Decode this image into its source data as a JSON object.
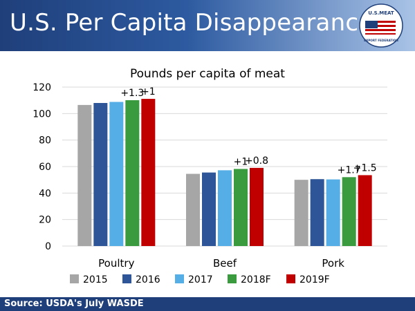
{
  "header": {
    "title": "U.S. Per Capita Disappearance",
    "logo": {
      "icon": "usmef-flag-logo",
      "text_top": "U.S.MEAT",
      "text_bottom": "EXPORT FEDERATION"
    }
  },
  "footer": {
    "source": "Source: USDA's July WASDE"
  },
  "colors": {
    "header_gradient": [
      "#1f3f7a",
      "#a9c3e6"
    ],
    "footer": "#1f3f7a",
    "series": [
      "#a6a6a6",
      "#2e5597",
      "#56aee6",
      "#3a9b3e",
      "#c00000"
    ]
  },
  "chart_data": {
    "type": "bar",
    "title": "Pounds per capita of meat",
    "categories": [
      "Poultry",
      "Beef",
      "Pork"
    ],
    "series": [
      {
        "name": "2015",
        "values": [
          106.5,
          54.5,
          50.0
        ]
      },
      {
        "name": "2016",
        "values": [
          108.0,
          55.5,
          50.5
        ]
      },
      {
        "name": "2017",
        "values": [
          108.8,
          57.2,
          50.3
        ]
      },
      {
        "name": "2018F",
        "values": [
          110.1,
          58.2,
          52.0
        ]
      },
      {
        "name": "2019F",
        "values": [
          111.1,
          59.0,
          53.5
        ]
      }
    ],
    "annotations": [
      {
        "category": "Poultry",
        "series": "2018F",
        "text": "+1.3"
      },
      {
        "category": "Poultry",
        "series": "2019F",
        "text": "+1"
      },
      {
        "category": "Beef",
        "series": "2018F",
        "text": "+1"
      },
      {
        "category": "Beef",
        "series": "2019F",
        "text": "+0.8"
      },
      {
        "category": "Pork",
        "series": "2018F",
        "text": "+1.7"
      },
      {
        "category": "Pork",
        "series": "2019F",
        "text": "+1.5"
      }
    ],
    "ylim": [
      0,
      120
    ],
    "yticks": [
      "0",
      "20",
      "40",
      "60",
      "80",
      "100",
      "120"
    ],
    "grid": true,
    "legend_position": "bottom"
  }
}
